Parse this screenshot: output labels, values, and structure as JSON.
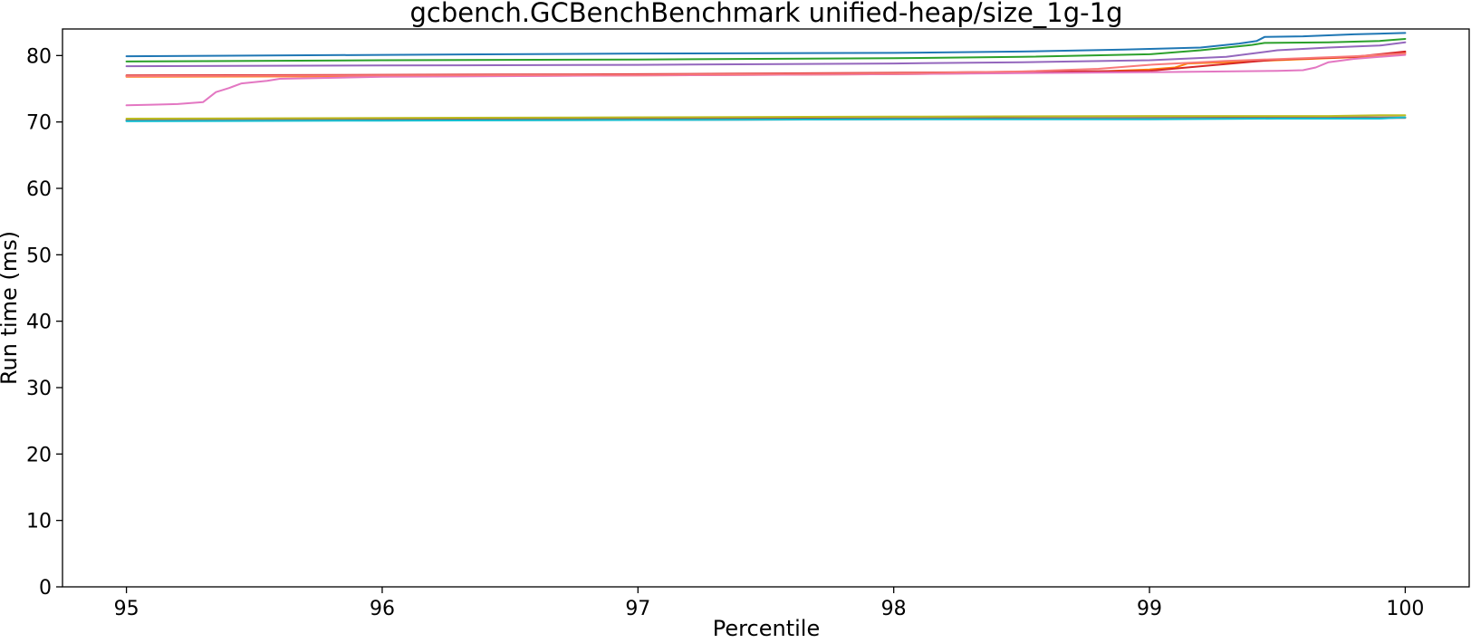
{
  "chart_data": {
    "type": "line",
    "title": "gcbench.GCBenchBenchmark unified-heap/size_1g-1g",
    "xlabel": "Percentile",
    "ylabel": "Run time (ms)",
    "xlim": [
      94.75,
      100.25
    ],
    "ylim": [
      0,
      84
    ],
    "xticks": [
      95,
      96,
      97,
      98,
      99,
      100
    ],
    "yticks": [
      0,
      10,
      20,
      30,
      40,
      50,
      60,
      70,
      80
    ],
    "grid": false,
    "legend": "none",
    "series": [
      {
        "color": "#1f77b4",
        "x": [
          95,
          96,
          97,
          98,
          98.5,
          98.9,
          99.0,
          99.2,
          99.35,
          99.42,
          99.45,
          99.6,
          99.8,
          100
        ],
        "y": [
          79.9,
          80.1,
          80.3,
          80.4,
          80.6,
          80.9,
          81.0,
          81.2,
          81.8,
          82.2,
          82.8,
          82.9,
          83.2,
          83.4
        ]
      },
      {
        "color": "#ff7f0e",
        "x": [
          95,
          96,
          97,
          98,
          98.5,
          98.8,
          99.0,
          99.1,
          99.15,
          99.3,
          99.5,
          99.7,
          99.9,
          100
        ],
        "y": [
          76.8,
          76.9,
          77.0,
          77.2,
          77.4,
          77.6,
          77.9,
          78.2,
          78.8,
          79.0,
          79.3,
          79.6,
          79.9,
          80.4
        ]
      },
      {
        "color": "#2ca02c",
        "x": [
          95,
          96,
          97,
          98,
          98.5,
          99.0,
          99.2,
          99.4,
          99.45,
          99.7,
          99.9,
          100
        ],
        "y": [
          79.1,
          79.3,
          79.4,
          79.6,
          79.8,
          80.2,
          80.8,
          81.6,
          81.9,
          82.0,
          82.2,
          82.5
        ]
      },
      {
        "color": "#d62728",
        "x": [
          95,
          96,
          97,
          98,
          99,
          99.5,
          99.8,
          100
        ],
        "y": [
          77.0,
          77.1,
          77.2,
          77.4,
          77.7,
          79.4,
          79.8,
          80.6
        ]
      },
      {
        "color": "#9467bd",
        "x": [
          95,
          96,
          97,
          98,
          98.5,
          99.0,
          99.3,
          99.5,
          99.7,
          99.9,
          100
        ],
        "y": [
          78.4,
          78.5,
          78.6,
          78.8,
          79.0,
          79.3,
          79.8,
          80.8,
          81.2,
          81.5,
          82.0
        ]
      },
      {
        "color": "#8c564b",
        "x": [
          95,
          97,
          99,
          100
        ],
        "y": [
          70.3,
          70.5,
          70.6,
          70.7
        ]
      },
      {
        "color": "#e377c2",
        "x": [
          95,
          95.1,
          95.2,
          95.3,
          95.35,
          95.4,
          95.45,
          95.55,
          95.6,
          96,
          97,
          98,
          99,
          99.5,
          99.6,
          99.65,
          99.7,
          99.8,
          99.9,
          100
        ],
        "y": [
          72.5,
          72.6,
          72.7,
          73.0,
          74.5,
          75.1,
          75.8,
          76.2,
          76.5,
          76.8,
          77.0,
          77.2,
          77.5,
          77.7,
          77.8,
          78.2,
          79.0,
          79.5,
          79.8,
          80.1
        ]
      },
      {
        "color": "#7f7f7f",
        "x": [
          95,
          97,
          99,
          100
        ],
        "y": [
          70.2,
          70.3,
          70.5,
          70.6
        ]
      },
      {
        "color": "#bcbd22",
        "x": [
          95,
          96,
          97,
          98,
          99,
          99.3,
          99.5,
          99.7,
          99.9,
          100
        ],
        "y": [
          70.5,
          70.6,
          70.7,
          70.8,
          70.9,
          70.9,
          70.9,
          70.9,
          71.0,
          71.0
        ]
      },
      {
        "color": "#17becf",
        "x": [
          95,
          96,
          97,
          98,
          99,
          99.5,
          99.9,
          100
        ],
        "y": [
          70.1,
          70.2,
          70.3,
          70.4,
          70.4,
          70.5,
          70.5,
          70.7
        ]
      },
      {
        "color": "#f87979",
        "x": [
          95,
          96,
          97,
          98,
          98.5,
          98.8,
          99.0,
          99.3,
          99.6,
          99.8,
          100
        ],
        "y": [
          76.9,
          77.0,
          77.1,
          77.3,
          77.6,
          78.0,
          78.6,
          79.2,
          79.6,
          79.9,
          80.3
        ]
      }
    ]
  }
}
